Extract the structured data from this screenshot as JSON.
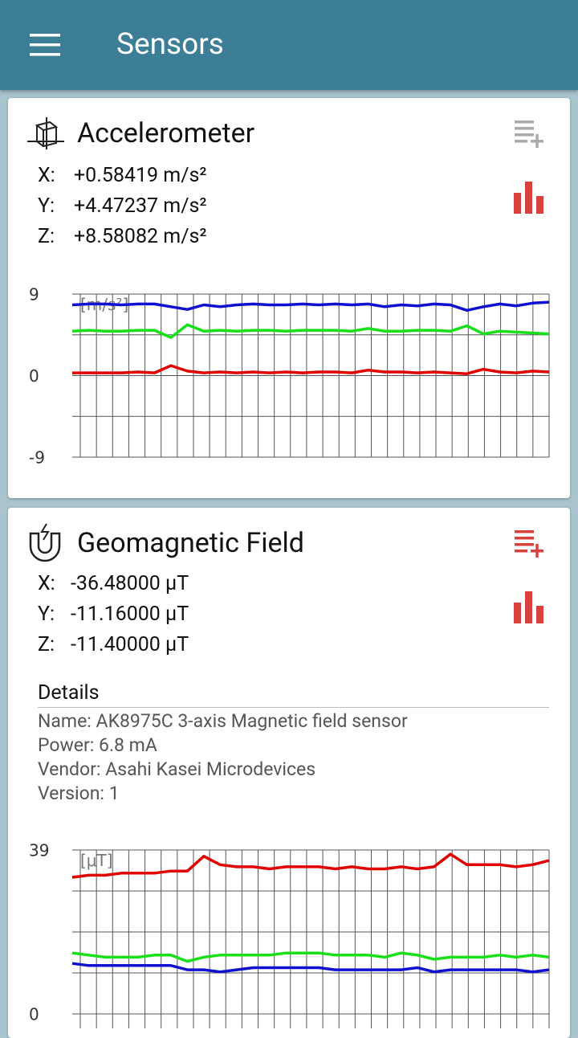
{
  "app_bar": {
    "title": "Sensors"
  },
  "cards": [
    {
      "title": "Accelerometer",
      "readings": [
        {
          "axis": "X:",
          "value": "+0.58419 m/s²"
        },
        {
          "axis": "Y:",
          "value": "+4.47237 m/s²"
        },
        {
          "axis": "Z:",
          "value": "+8.58082 m/s²"
        }
      ],
      "chart_data": {
        "type": "line",
        "unit_label": "[m/s²]",
        "ylim": [
          -9,
          9
        ],
        "yticks": [
          -9,
          0,
          9
        ],
        "ygrid": [
          -9,
          -4.5,
          0,
          4.5,
          9
        ],
        "xgrid_count": 29,
        "series": [
          {
            "color": "#e00000",
            "values": [
              0.3,
              0.3,
              0.3,
              0.3,
              0.4,
              0.3,
              1.1,
              0.5,
              0.3,
              0.4,
              0.3,
              0.4,
              0.3,
              0.4,
              0.3,
              0.4,
              0.4,
              0.3,
              0.6,
              0.4,
              0.4,
              0.3,
              0.4,
              0.3,
              0.2,
              0.7,
              0.4,
              0.3,
              0.5,
              0.4
            ]
          },
          {
            "color": "#18e018",
            "values": [
              4.9,
              5.0,
              4.9,
              4.9,
              5.0,
              5.0,
              4.2,
              5.6,
              4.9,
              5.0,
              4.9,
              5.0,
              5.0,
              4.9,
              5.0,
              5.0,
              5.0,
              4.9,
              5.2,
              4.9,
              4.9,
              5.0,
              5.0,
              4.9,
              5.5,
              4.6,
              4.9,
              4.8,
              4.7,
              4.6
            ]
          },
          {
            "color": "#1010d0",
            "values": [
              7.8,
              7.9,
              7.9,
              7.8,
              7.9,
              7.9,
              7.6,
              7.3,
              7.8,
              7.6,
              7.8,
              7.9,
              7.8,
              7.8,
              7.9,
              7.8,
              7.9,
              7.8,
              7.9,
              7.6,
              7.8,
              7.7,
              7.9,
              7.8,
              7.2,
              7.6,
              7.9,
              7.7,
              8.0,
              8.1
            ]
          }
        ]
      }
    },
    {
      "title": "Geomagnetic Field",
      "readings": [
        {
          "axis": "X:",
          "value": "-36.48000 μT"
        },
        {
          "axis": "Y:",
          "value": "-11.16000 μT"
        },
        {
          "axis": "Z:",
          "value": "-11.40000 μT"
        }
      ],
      "details": {
        "heading": "Details",
        "lines": [
          "Name: AK8975C 3-axis Magnetic field sensor",
          "Power: 6.8 mA",
          "Vendor: Asahi Kasei Microdevices",
          "Version: 1"
        ]
      },
      "chart_data": {
        "type": "line",
        "unit_label": "[μT]",
        "ylim": [
          -39,
          39
        ],
        "yticks": [
          0,
          39
        ],
        "ygrid": [
          -39,
          -29.25,
          -19.5,
          -9.75,
          0,
          9.75,
          19.5,
          29.25,
          39
        ],
        "xgrid_count": 29,
        "series": [
          {
            "color": "#e00000",
            "values": [
              32.5,
              33,
              33,
              33.5,
              33.5,
              33.5,
              34,
              34,
              37.5,
              35.5,
              35,
              35,
              34.5,
              35,
              35,
              35,
              34.5,
              35,
              34.5,
              34.5,
              35,
              34.5,
              35,
              38,
              35.5,
              35.5,
              35.5,
              35,
              35.5,
              36.5
            ]
          },
          {
            "color": "#18e018",
            "values": [
              14.5,
              14,
              13.5,
              13.5,
              13.5,
              14,
              14,
              12.5,
              13.5,
              14,
              14,
              14,
              14,
              14.5,
              14.5,
              14.5,
              14,
              14,
              14,
              13.5,
              14.5,
              14,
              13,
              13.5,
              13.5,
              13.5,
              14,
              13.5,
              14,
              13.5
            ]
          },
          {
            "color": "#1010d0",
            "values": [
              12,
              11.5,
              11.5,
              11.5,
              11.5,
              11.5,
              11.5,
              10.5,
              10.5,
              10,
              10.5,
              11,
              11,
              11,
              11,
              11,
              10.5,
              10.5,
              10.5,
              10.5,
              10.5,
              11,
              10,
              10.5,
              10.5,
              10.5,
              10.5,
              10.5,
              10,
              10.5
            ]
          }
        ]
      }
    }
  ]
}
